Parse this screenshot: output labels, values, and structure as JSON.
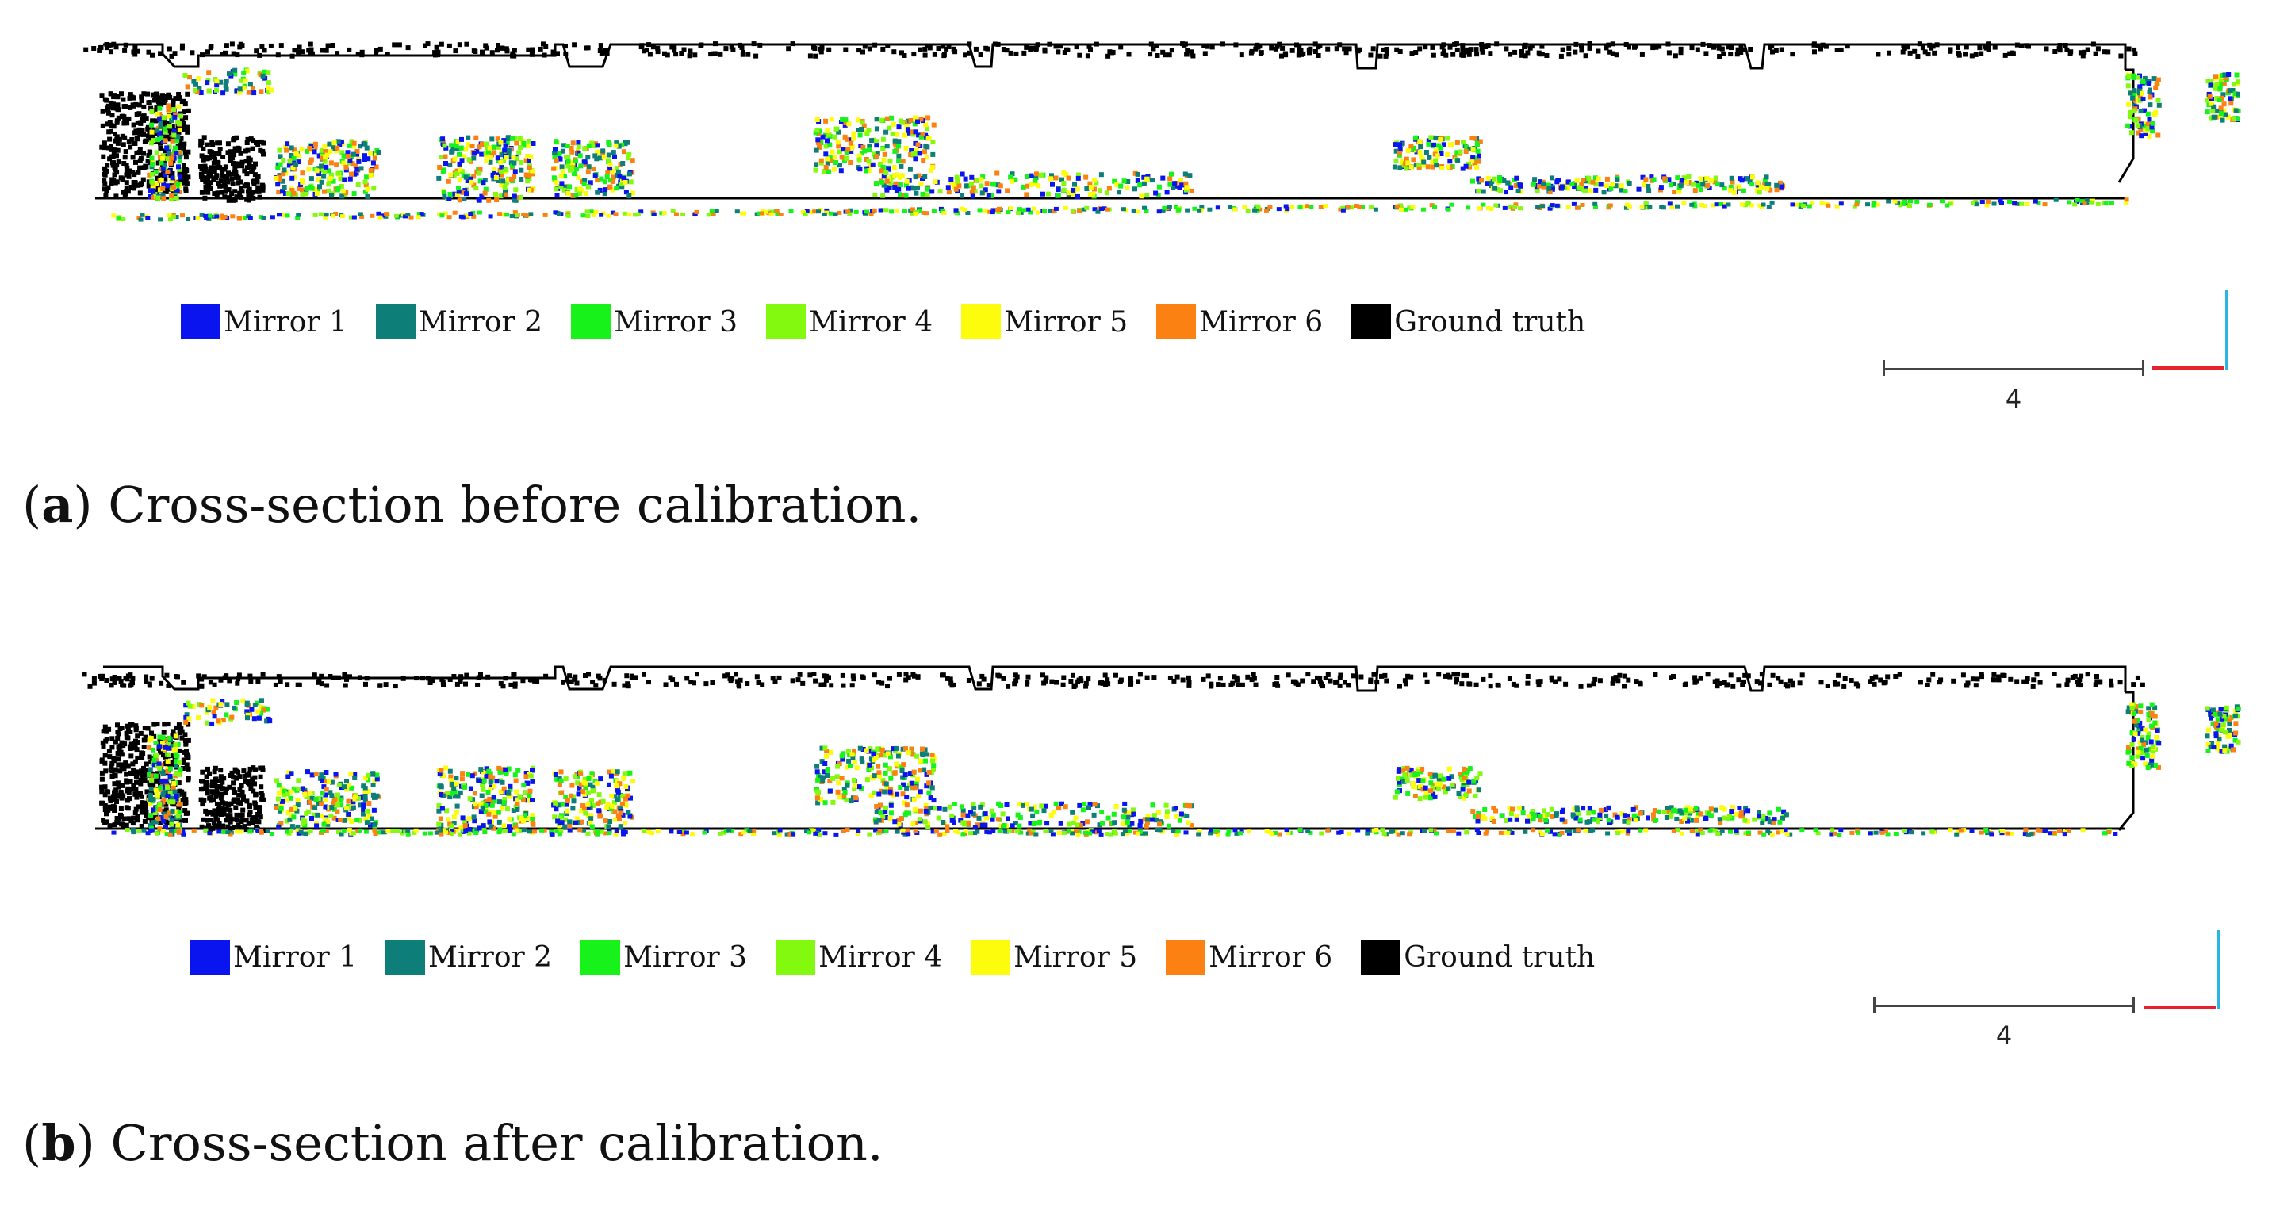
{
  "colors": {
    "mirror_1": "#0a14ee",
    "mirror_2": "#0e7f78",
    "mirror_3": "#18f21b",
    "mirror_4": "#84f910",
    "mirror_5": "#fcfc0c",
    "mirror_6": "#fb8112",
    "ground_truth": "#000000",
    "axis_x": "#e8212b",
    "axis_y": "#2bb5e0"
  },
  "panels": [
    {
      "id": "a",
      "caption_letter": "a",
      "caption_text": "Cross-section before calibration.",
      "legend": [
        {
          "label": "Mirror 1",
          "color": "#0a14ee"
        },
        {
          "label": "Mirror 2",
          "color": "#0e7f78"
        },
        {
          "label": "Mirror 3",
          "color": "#18f21b"
        },
        {
          "label": "Mirror 4",
          "color": "#84f910"
        },
        {
          "label": "Mirror 5",
          "color": "#fcfc0c"
        },
        {
          "label": "Mirror 6",
          "color": "#fb8112"
        },
        {
          "label": "Ground truth",
          "color": "#000000"
        }
      ],
      "scale_label": "4"
    },
    {
      "id": "b",
      "caption_letter": "b",
      "caption_text": "Cross-section after calibration.",
      "legend": [
        {
          "label": "Mirror 1",
          "color": "#0a14ee"
        },
        {
          "label": "Mirror 2",
          "color": "#0e7f78"
        },
        {
          "label": "Mirror 3",
          "color": "#18f21b"
        },
        {
          "label": "Mirror 4",
          "color": "#84f910"
        },
        {
          "label": "Mirror 5",
          "color": "#fcfc0c"
        },
        {
          "label": "Mirror 6",
          "color": "#fb8112"
        },
        {
          "label": "Ground truth",
          "color": "#000000"
        }
      ],
      "scale_label": "4"
    }
  ]
}
